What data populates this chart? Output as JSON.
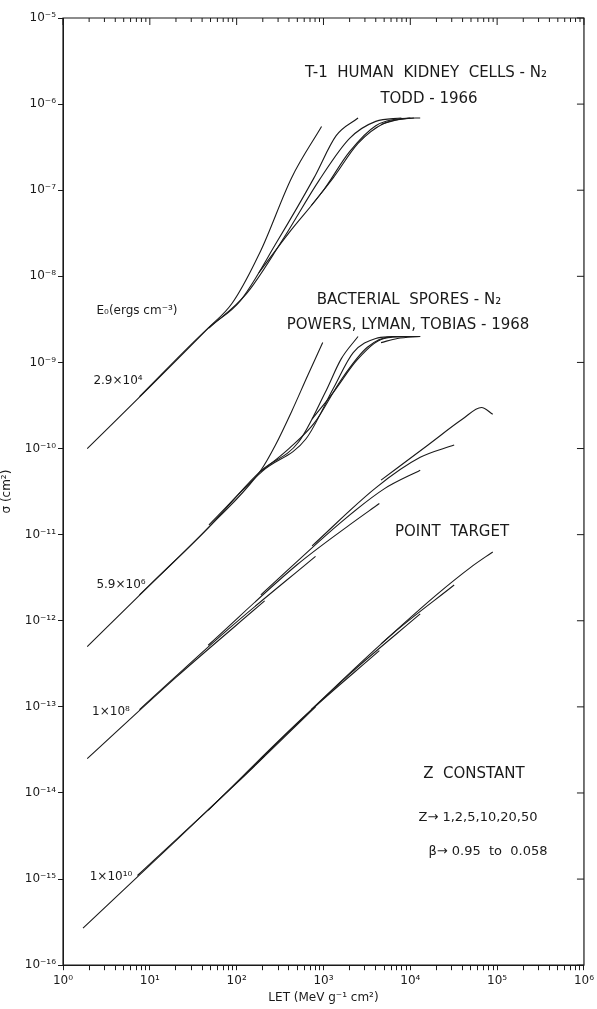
{
  "chart_data": {
    "type": "line",
    "xlabel": "LET (MeV g⁻¹ cm²)",
    "ylabel": "σ (cm²)",
    "log": "xy",
    "grid": false,
    "legend": false,
    "marker": "none",
    "line_style": "solid",
    "xlim": [
      1,
      1000000
    ],
    "ylim": [
      1e-16,
      1e-05
    ],
    "xticks": [
      {
        "value": 1,
        "label": "10⁰"
      },
      {
        "value": 2,
        "label": null
      },
      {
        "value": 3,
        "label": null
      },
      {
        "value": 4,
        "label": null
      },
      {
        "value": 5,
        "label": null
      },
      {
        "value": 6,
        "label": null
      },
      {
        "value": 7,
        "label": null
      },
      {
        "value": 8,
        "label": null
      },
      {
        "value": 9,
        "label": null
      },
      {
        "value": 10,
        "label": "10¹"
      },
      {
        "value": 20,
        "label": null
      },
      {
        "value": 30,
        "label": null
      },
      {
        "value": 40,
        "label": null
      },
      {
        "value": 50,
        "label": null
      },
      {
        "value": 60,
        "label": null
      },
      {
        "value": 70,
        "label": null
      },
      {
        "value": 80,
        "label": null
      },
      {
        "value": 90,
        "label": null
      },
      {
        "value": 100,
        "label": "10²"
      },
      {
        "value": 200,
        "label": null
      },
      {
        "value": 300,
        "label": null
      },
      {
        "value": 400,
        "label": null
      },
      {
        "value": 500,
        "label": null
      },
      {
        "value": 600,
        "label": null
      },
      {
        "value": 700,
        "label": null
      },
      {
        "value": 800,
        "label": null
      },
      {
        "value": 900,
        "label": null
      },
      {
        "value": 1000,
        "label": "10³"
      },
      {
        "value": 2000,
        "label": null
      },
      {
        "value": 3000,
        "label": null
      },
      {
        "value": 4000,
        "label": null
      },
      {
        "value": 5000,
        "label": null
      },
      {
        "value": 6000,
        "label": null
      },
      {
        "value": 7000,
        "label": null
      },
      {
        "value": 8000,
        "label": null
      },
      {
        "value": 9000,
        "label": null
      },
      {
        "value": 10000,
        "label": "10⁴"
      },
      {
        "value": 20000,
        "label": null
      },
      {
        "value": 30000,
        "label": null
      },
      {
        "value": 40000,
        "label": null
      },
      {
        "value": 50000,
        "label": null
      },
      {
        "value": 60000,
        "label": null
      },
      {
        "value": 70000,
        "label": null
      },
      {
        "value": 80000,
        "label": null
      },
      {
        "value": 90000,
        "label": null
      },
      {
        "value": 100000,
        "label": "10⁵"
      },
      {
        "value": 200000,
        "label": null
      },
      {
        "value": 300000,
        "label": null
      },
      {
        "value": 400000,
        "label": null
      },
      {
        "value": 500000,
        "label": null
      },
      {
        "value": 600000,
        "label": null
      },
      {
        "value": 700000,
        "label": null
      },
      {
        "value": 800000,
        "label": null
      },
      {
        "value": 900000,
        "label": null
      },
      {
        "value": 1000000,
        "label": "10⁶"
      }
    ],
    "yticks": [
      {
        "value": 1e-16,
        "label": "10⁻¹⁶"
      },
      {
        "value": 1e-15,
        "label": "10⁻¹⁵"
      },
      {
        "value": 1e-14,
        "label": "10⁻¹⁴"
      },
      {
        "value": 1e-13,
        "label": "10⁻¹³"
      },
      {
        "value": 1e-12,
        "label": "10⁻¹²"
      },
      {
        "value": 1e-11,
        "label": "10⁻¹¹"
      },
      {
        "value": 1e-10,
        "label": "10⁻¹⁰"
      },
      {
        "value": 1e-09,
        "label": "10⁻⁹"
      },
      {
        "value": 1e-08,
        "label": "10⁻⁸"
      },
      {
        "value": 1e-07,
        "label": "10⁻⁷"
      },
      {
        "value": 1e-06,
        "label": "10⁻⁶"
      },
      {
        "value": 1e-05,
        "label": "10⁻⁵"
      }
    ],
    "series": [
      {
        "color": "#1a1a1a",
        "x": [
          1.9,
          10,
          47,
          89,
          190,
          430,
          950
        ],
        "values": [
          1e-10,
          5.2e-10,
          2.5e-09,
          4.9e-09,
          2e-08,
          1.4e-07,
          5.5e-07
        ]
      },
      {
        "color": "#1a1a1a",
        "x": [
          7.6,
          47,
          110,
          290,
          780,
          1400,
          2500
        ],
        "values": [
          4e-10,
          2.5e-09,
          5.2e-09,
          2.5e-08,
          1.4e-07,
          4.3e-07,
          6.9e-07
        ]
      },
      {
        "color": "#1a1a1a",
        "x": [
          48,
          130,
          350,
          890,
          2000,
          4000,
          7900
        ],
        "values": [
          2.5e-09,
          6.3e-09,
          2.8e-08,
          1.3e-07,
          4e-07,
          6.3e-07,
          6.9e-07
        ]
      },
      {
        "color": "#1a1a1a",
        "x": [
          180,
          400,
          1000,
          2000,
          4000,
          7900,
          13000
        ],
        "values": [
          1.1e-08,
          3.2e-08,
          1e-07,
          2.8e-07,
          5.6e-07,
          6.8e-07,
          6.9e-07
        ]
      },
      {
        "color": "#1a1a1a",
        "x": [
          720,
          1300,
          2500,
          5000,
          10000
        ],
        "values": [
          6.6e-08,
          1.4e-07,
          3.5e-07,
          6e-07,
          6.9e-07
        ]
      },
      {
        "color": "#1a1a1a",
        "x": [
          4600,
          7100,
          11000
        ],
        "values": [
          5.8e-07,
          6.6e-07,
          6.9e-07
        ]
      },
      {
        "color": "#1a1a1a",
        "x": [
          1.9,
          10,
          47,
          190,
          280,
          430,
          660,
          980
        ],
        "values": [
          5e-13,
          2.6e-12,
          1.2e-11,
          5.6e-11,
          1.1e-10,
          2.7e-10,
          7.1e-10,
          1.7e-09
        ]
      },
      {
        "color": "#1a1a1a",
        "x": [
          7.6,
          47,
          190,
          520,
          1050,
          1600,
          2500
        ],
        "values": [
          2e-12,
          1.2e-11,
          5.5e-11,
          1.2e-10,
          4.5e-10,
          1.1e-09,
          2e-09
        ]
      },
      {
        "color": "#1a1a1a",
        "x": [
          48,
          200,
          630,
          1300,
          2200,
          4000,
          6300
        ],
        "values": [
          1.3e-11,
          5.5e-11,
          1.3e-10,
          5e-10,
          1.3e-09,
          1.9e-09,
          2e-09
        ]
      },
      {
        "color": "#1a1a1a",
        "x": [
          190,
          400,
          790,
          1600,
          3200,
          6300,
          13000
        ],
        "values": [
          5.4e-11,
          1e-10,
          2e-10,
          6.3e-10,
          1.5e-09,
          2e-09,
          2e-09
        ]
      },
      {
        "color": "#1a1a1a",
        "x": [
          740,
          1300,
          2500,
          5000,
          10000
        ],
        "values": [
          2.2e-10,
          4.5e-10,
          1.1e-09,
          1.9e-09,
          2e-09
        ]
      },
      {
        "color": "#1a1a1a",
        "x": [
          4600,
          7100,
          13000
        ],
        "values": [
          1.7e-09,
          1.9e-09,
          2e-09
        ]
      },
      {
        "color": "#1a1a1a",
        "x": [
          1.9,
          20,
          210
        ],
        "values": [
          2.5e-14,
          2.2e-13,
          1.7e-12
        ]
      },
      {
        "color": "#1a1a1a",
        "x": [
          7.6,
          79,
          810
        ],
        "values": [
          9.3e-14,
          7.9e-13,
          5.6e-12
        ]
      },
      {
        "color": "#1a1a1a",
        "x": [
          47,
          500,
          2000,
          4400
        ],
        "values": [
          5.2e-13,
          4.5e-12,
          1.3e-11,
          2.3e-11
        ]
      },
      {
        "color": "#1a1a1a",
        "x": [
          190,
          1600,
          5000,
          13000
        ],
        "values": [
          2e-12,
          1.4e-11,
          3.4e-11,
          5.6e-11
        ]
      },
      {
        "color": "#1a1a1a",
        "x": [
          740,
          4000,
          13000,
          32000
        ],
        "values": [
          7.4e-12,
          3.5e-11,
          7.9e-11,
          1.1e-10
        ]
      },
      {
        "color": "#1a1a1a",
        "x": [
          4600,
          16000,
          40000,
          66000,
          89000
        ],
        "values": [
          4.3e-11,
          1.1e-10,
          2.2e-10,
          3e-10,
          2.5e-10
        ]
      },
      {
        "color": "#1a1a1a",
        "x": [
          1.7,
          20,
          210
        ],
        "values": [
          2.7e-16,
          2.8e-15,
          2.7e-14
        ]
      },
      {
        "color": "#1a1a1a",
        "x": [
          7.2,
          100,
          810
        ],
        "values": [
          1.1e-15,
          1.3e-14,
          1e-13
        ]
      },
      {
        "color": "#1a1a1a",
        "x": [
          47,
          630,
          4400
        ],
        "values": [
          6.3e-15,
          8.1e-14,
          4.5e-13
        ]
      },
      {
        "color": "#1a1a1a",
        "x": [
          190,
          2000,
          13000
        ],
        "values": [
          2.5e-14,
          2.4e-13,
          1.2e-12
        ]
      },
      {
        "color": "#1a1a1a",
        "x": [
          720,
          6300,
          32000
        ],
        "values": [
          9.3e-14,
          7.1e-13,
          2.6e-12
        ]
      },
      {
        "color": "#1a1a1a",
        "x": [
          4600,
          20000,
          50000,
          89000
        ],
        "values": [
          5.4e-13,
          2e-12,
          4.2e-12,
          6.3e-12
        ]
      }
    ],
    "annotations": [
      "T-1  HUMAN  KIDNEY  CELLS - N₂",
      "TODD - 1966",
      "E₀(ergs cm⁻³)",
      "BACTERIAL  SPORES - N₂",
      "POWERS, LYMAN, TOBIAS - 1968",
      "POINT  TARGET",
      "Z  CONSTANT",
      "Z→ 1,2,5,10,20,50",
      "β→ 0.95  to  0.058",
      "2.9×10⁴",
      "5.9×10⁶",
      "1×10⁸",
      "1×10¹⁰"
    ]
  }
}
